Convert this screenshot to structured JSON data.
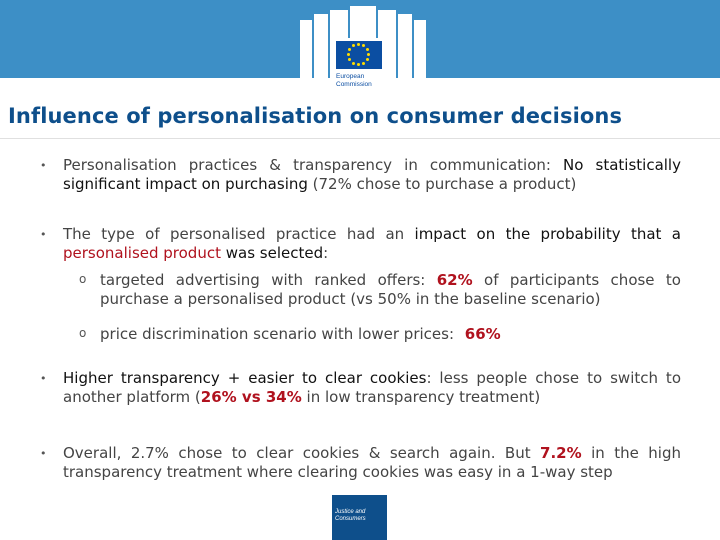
{
  "header": {
    "logo_line1": "European",
    "logo_line2": "Commission"
  },
  "title": "Influence of personalisation on consumer decisions",
  "bullets": [
    {
      "marker": "•",
      "a": "Personalisation practices & transparency in communication: ",
      "b": "No statistically significant impact on purchasing",
      "c": " (72% chose to purchase a product)"
    },
    {
      "marker": "•",
      "a": "The type of personalised practice had an ",
      "b": "impact on the probability that a ",
      "c": "personalised product",
      "d": " was selected",
      "e": ":",
      "subs": [
        {
          "marker": "o",
          "a": "targeted advertising with ranked offers: ",
          "b": "62%",
          "c": " of participants chose to purchase a personalised product (vs 50% in the baseline scenario)"
        },
        {
          "marker": "o",
          "a": "price discrimination scenario with lower prices: ",
          "b": "66%"
        }
      ]
    },
    {
      "marker": "•",
      "a": "Higher transparency + easier to clear cookies",
      "b": ": less people chose to switch to another platform (",
      "c": "26% vs 34%",
      "d": " in low transparency treatment)"
    },
    {
      "marker": "•",
      "a": "Overall, 2.7% chose to clear cookies & search again. But ",
      "b": "7.2%",
      "c": " in the high transparency treatment where clearing cookies was easy in a 1-way step"
    }
  ],
  "footer": {
    "line1": "Justice and",
    "line2": "Consumers"
  },
  "colors": {
    "banner": "#3d8fc6",
    "title": "#0e4f8b",
    "highlight_red": "#b0121e",
    "footer_box": "#0e4f8b"
  }
}
